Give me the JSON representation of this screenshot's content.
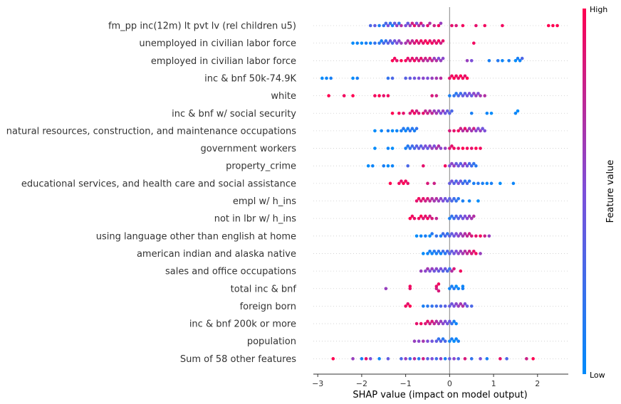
{
  "chart_data": {
    "type": "scatter",
    "subtype": "shap-beeswarm",
    "title": "",
    "xlabel": "SHAP value (impact on model output)",
    "ylabel": "",
    "xlim": [
      -3.1,
      2.7
    ],
    "xticks": [
      -3,
      -2,
      -1,
      0,
      1,
      2
    ],
    "colorbar": {
      "title": "Feature value",
      "high_label": "High",
      "low_label": "Low",
      "low_color": "#008bfb",
      "high_color": "#ff0051"
    },
    "grid": false,
    "features": [
      {
        "name": "fm_pp inc(12m) lt pvt lv (rel children u5)",
        "x": [
          -1.8,
          -1.7,
          -1.6,
          -1.5,
          -1.45,
          -1.4,
          -1.35,
          -1.3,
          -1.25,
          -1.2,
          -1.15,
          -1.1,
          -1.0,
          -0.95,
          -0.9,
          -0.85,
          -0.8,
          -0.75,
          -0.7,
          -0.65,
          -0.6,
          -0.5,
          -0.45,
          -0.35,
          -0.25,
          -0.2,
          0.05,
          0.15,
          0.3,
          0.6,
          0.8,
          1.2,
          2.25,
          2.35,
          2.45
        ],
        "c": [
          0.3,
          0.4,
          0.1,
          0.2,
          0.3,
          0.5,
          0.2,
          0.1,
          0.4,
          0.6,
          0.2,
          0.7,
          0.5,
          0.4,
          0.6,
          0.8,
          0.9,
          0.5,
          0.7,
          0.85,
          0.6,
          0.9,
          0.7,
          0.8,
          0.95,
          0.6,
          0.9,
          0.85,
          0.95,
          0.9,
          0.95,
          0.95,
          1.0,
          1.0,
          1.0
        ]
      },
      {
        "name": "unemployed  in civilian labor force",
        "x": [
          -2.2,
          -2.1,
          -2.0,
          -1.9,
          -1.8,
          -1.7,
          -1.6,
          -1.55,
          -1.5,
          -1.45,
          -1.4,
          -1.35,
          -1.3,
          -1.25,
          -1.2,
          -1.15,
          -1.1,
          -1.0,
          -0.95,
          -0.9,
          -0.85,
          -0.8,
          -0.75,
          -0.7,
          -0.65,
          -0.6,
          -0.55,
          -0.5,
          -0.45,
          -0.4,
          -0.35,
          -0.3,
          -0.25,
          -0.2,
          -0.15,
          0.55
        ],
        "c": [
          0.0,
          0.05,
          0.0,
          0.1,
          0.05,
          0.2,
          0.15,
          0.1,
          0.3,
          0.2,
          0.35,
          0.4,
          0.3,
          0.45,
          0.5,
          0.55,
          0.6,
          0.65,
          0.7,
          0.8,
          0.75,
          0.85,
          0.9,
          0.85,
          0.95,
          0.9,
          0.95,
          1.0,
          0.9,
          0.95,
          0.85,
          0.9,
          0.95,
          0.8,
          0.9,
          0.95
        ]
      },
      {
        "name": "employed in civilian labor force",
        "x": [
          -1.3,
          -1.25,
          -1.2,
          -1.1,
          -1.0,
          -0.95,
          -0.9,
          -0.85,
          -0.8,
          -0.75,
          -0.7,
          -0.65,
          -0.6,
          -0.55,
          -0.5,
          -0.45,
          -0.4,
          -0.35,
          -0.3,
          -0.25,
          -0.2,
          -0.15,
          0.4,
          0.5,
          0.9,
          1.1,
          1.2,
          1.35,
          1.5,
          1.55,
          1.6,
          1.65
        ],
        "c": [
          1.0,
          0.95,
          0.9,
          1.0,
          0.95,
          0.9,
          0.85,
          0.9,
          0.95,
          0.8,
          0.85,
          0.9,
          0.75,
          0.8,
          0.7,
          0.85,
          0.75,
          0.6,
          0.7,
          0.5,
          0.6,
          0.55,
          0.6,
          0.5,
          0.1,
          0.15,
          0.05,
          0.1,
          0.0,
          0.1,
          0.05,
          0.3
        ]
      },
      {
        "name": "inc & bnf 50k-74.9K",
        "x": [
          -2.9,
          -2.8,
          -2.7,
          -2.2,
          -2.1,
          -1.4,
          -1.3,
          -1.0,
          -0.9,
          -0.8,
          -0.7,
          -0.6,
          -0.5,
          -0.4,
          -0.3,
          -0.2,
          0.0,
          0.05,
          0.1,
          0.15,
          0.2,
          0.25,
          0.3,
          0.35,
          0.4
        ],
        "c": [
          0.0,
          0.05,
          0.1,
          0.0,
          0.1,
          0.2,
          0.3,
          0.35,
          0.4,
          0.45,
          0.5,
          0.55,
          0.5,
          0.6,
          0.65,
          0.7,
          0.9,
          0.95,
          1.0,
          0.95,
          0.9,
          1.0,
          0.95,
          0.9,
          1.0
        ]
      },
      {
        "name": "white",
        "x": [
          -2.75,
          -2.4,
          -2.2,
          -1.7,
          -1.6,
          -1.5,
          -1.4,
          -0.4,
          -0.3,
          0.0,
          0.1,
          0.15,
          0.2,
          0.25,
          0.3,
          0.35,
          0.4,
          0.45,
          0.5,
          0.55,
          0.6,
          0.65,
          0.7,
          0.8
        ],
        "c": [
          1.0,
          0.95,
          1.0,
          0.95,
          1.0,
          0.9,
          0.95,
          0.85,
          0.8,
          0.1,
          0.2,
          0.15,
          0.3,
          0.25,
          0.4,
          0.35,
          0.45,
          0.5,
          0.4,
          0.55,
          0.6,
          0.5,
          0.65,
          0.7
        ]
      },
      {
        "name": "inc & bnf w/ social security",
        "x": [
          -1.3,
          -1.15,
          -1.05,
          -0.9,
          -0.85,
          -0.8,
          -0.75,
          -0.7,
          -0.6,
          -0.55,
          -0.5,
          -0.45,
          -0.4,
          -0.35,
          -0.3,
          -0.25,
          -0.2,
          -0.15,
          -0.1,
          -0.05,
          0.0,
          0.05,
          0.5,
          0.85,
          0.95,
          1.5,
          1.55
        ],
        "c": [
          1.0,
          0.95,
          0.9,
          0.85,
          0.9,
          0.95,
          0.8,
          0.85,
          0.9,
          0.75,
          0.8,
          0.7,
          0.75,
          0.6,
          0.65,
          0.55,
          0.5,
          0.6,
          0.45,
          0.4,
          0.35,
          0.3,
          0.1,
          0.05,
          0.0,
          0.05,
          0.0
        ]
      },
      {
        "name": "natural resources, construction, and maintenance occupations",
        "x": [
          -1.7,
          -1.55,
          -1.4,
          -1.3,
          -1.2,
          -1.1,
          -1.05,
          -1.0,
          -0.95,
          -0.9,
          -0.85,
          -0.8,
          -0.75,
          0.0,
          0.1,
          0.2,
          0.25,
          0.3,
          0.35,
          0.4,
          0.45,
          0.5,
          0.55,
          0.6,
          0.65,
          0.7,
          0.75,
          0.8
        ],
        "c": [
          0.0,
          0.05,
          0.1,
          0.0,
          0.05,
          0.1,
          0.15,
          0.05,
          0.1,
          0.2,
          0.15,
          0.1,
          0.2,
          0.85,
          0.9,
          0.95,
          0.8,
          0.7,
          0.9,
          0.75,
          0.6,
          0.65,
          0.8,
          0.55,
          0.5,
          0.6,
          0.45,
          0.5
        ]
      },
      {
        "name": "government workers",
        "x": [
          -1.7,
          -1.4,
          -1.3,
          -1.0,
          -0.95,
          -0.9,
          -0.85,
          -0.8,
          -0.75,
          -0.7,
          -0.65,
          -0.6,
          -0.55,
          -0.5,
          -0.45,
          -0.4,
          -0.35,
          -0.3,
          -0.25,
          -0.2,
          -0.1,
          0.0,
          0.05,
          0.1,
          0.2,
          0.3,
          0.4,
          0.5,
          0.6,
          0.7
        ],
        "c": [
          0.0,
          0.05,
          0.0,
          0.1,
          0.15,
          0.2,
          0.25,
          0.3,
          0.35,
          0.4,
          0.35,
          0.45,
          0.5,
          0.4,
          0.55,
          0.6,
          0.5,
          0.65,
          0.7,
          0.55,
          0.6,
          0.85,
          0.9,
          0.95,
          0.9,
          1.0,
          0.95,
          0.9,
          1.0,
          0.95
        ]
      },
      {
        "name": "property_crime",
        "x": [
          -1.85,
          -1.75,
          -1.5,
          -1.4,
          -1.3,
          -0.95,
          -0.6,
          -0.1,
          0.0,
          0.05,
          0.1,
          0.15,
          0.2,
          0.25,
          0.3,
          0.35,
          0.4,
          0.45,
          0.5,
          0.55,
          0.6
        ],
        "c": [
          0.0,
          0.05,
          0.1,
          0.0,
          0.05,
          0.3,
          0.9,
          0.95,
          0.5,
          0.55,
          0.6,
          0.4,
          0.45,
          0.35,
          0.5,
          0.6,
          0.45,
          0.3,
          0.25,
          0.2,
          0.15
        ]
      },
      {
        "name": "educational services, and health care and social assistance",
        "x": [
          -1.35,
          -1.15,
          -1.1,
          -1.05,
          -1.0,
          -0.95,
          -0.5,
          -0.35,
          0.0,
          0.05,
          0.1,
          0.15,
          0.2,
          0.25,
          0.3,
          0.35,
          0.4,
          0.45,
          0.55,
          0.65,
          0.75,
          0.85,
          0.95,
          1.15,
          1.45
        ],
        "c": [
          1.0,
          0.95,
          0.9,
          1.0,
          0.95,
          0.9,
          0.85,
          0.8,
          0.4,
          0.45,
          0.35,
          0.3,
          0.5,
          0.4,
          0.25,
          0.2,
          0.3,
          0.15,
          0.1,
          0.15,
          0.1,
          0.05,
          0.1,
          0.0,
          0.05
        ]
      },
      {
        "name": "empl w/ h_ins",
        "x": [
          -0.75,
          -0.7,
          -0.65,
          -0.6,
          -0.55,
          -0.5,
          -0.45,
          -0.4,
          -0.35,
          -0.3,
          -0.25,
          -0.2,
          -0.15,
          -0.1,
          -0.05,
          0.0,
          0.05,
          0.1,
          0.15,
          0.2,
          0.3,
          0.45,
          0.65
        ],
        "c": [
          0.9,
          0.95,
          0.85,
          0.9,
          0.8,
          0.85,
          0.75,
          0.7,
          0.65,
          0.7,
          0.6,
          0.55,
          0.5,
          0.45,
          0.4,
          0.35,
          0.3,
          0.25,
          0.2,
          0.15,
          0.1,
          0.05,
          0.0
        ]
      },
      {
        "name": "not in lbr w/ h_ins",
        "x": [
          -0.9,
          -0.85,
          -0.8,
          -0.7,
          -0.65,
          -0.6,
          -0.55,
          -0.5,
          -0.45,
          -0.4,
          -0.3,
          0.0,
          0.05,
          0.1,
          0.15,
          0.2,
          0.25,
          0.3,
          0.35,
          0.4,
          0.45,
          0.5,
          0.55
        ],
        "c": [
          1.0,
          0.95,
          0.9,
          0.95,
          1.0,
          0.85,
          0.9,
          0.95,
          0.8,
          0.85,
          0.75,
          0.1,
          0.2,
          0.25,
          0.3,
          0.35,
          0.4,
          0.45,
          0.5,
          0.55,
          0.6,
          0.65,
          0.7
        ]
      },
      {
        "name": "using language other than english at home",
        "x": [
          -0.75,
          -0.65,
          -0.55,
          -0.45,
          -0.4,
          -0.3,
          -0.2,
          -0.15,
          -0.1,
          -0.05,
          0.0,
          0.05,
          0.1,
          0.15,
          0.2,
          0.25,
          0.3,
          0.35,
          0.4,
          0.45,
          0.5,
          0.6,
          0.7,
          0.8,
          0.9
        ],
        "c": [
          0.0,
          0.05,
          0.1,
          0.0,
          0.15,
          0.2,
          0.1,
          0.25,
          0.3,
          0.2,
          0.35,
          0.4,
          0.45,
          0.5,
          0.55,
          0.6,
          0.65,
          0.7,
          0.75,
          0.8,
          0.85,
          0.9,
          0.95,
          0.8,
          0.6
        ]
      },
      {
        "name": "american indian and alaska native",
        "x": [
          -0.6,
          -0.5,
          -0.45,
          -0.4,
          -0.35,
          -0.3,
          -0.25,
          -0.2,
          -0.15,
          -0.1,
          -0.05,
          0.0,
          0.05,
          0.1,
          0.15,
          0.2,
          0.25,
          0.3,
          0.35,
          0.4,
          0.45,
          0.5,
          0.55,
          0.6,
          0.7
        ],
        "c": [
          0.0,
          0.05,
          0.1,
          0.05,
          0.15,
          0.1,
          0.2,
          0.05,
          0.25,
          0.15,
          0.3,
          0.35,
          0.4,
          0.45,
          0.5,
          0.55,
          0.6,
          0.65,
          0.7,
          0.75,
          0.8,
          0.85,
          0.9,
          0.95,
          0.6
        ]
      },
      {
        "name": "sales and office occupations",
        "x": [
          -0.65,
          -0.55,
          -0.5,
          -0.45,
          -0.4,
          -0.35,
          -0.3,
          -0.25,
          -0.2,
          -0.15,
          -0.1,
          -0.05,
          0.0,
          0.05,
          0.1,
          0.25
        ],
        "c": [
          0.6,
          0.55,
          0.65,
          0.5,
          0.6,
          0.45,
          0.55,
          0.4,
          0.5,
          0.35,
          0.45,
          0.3,
          0.2,
          0.7,
          0.85,
          0.95
        ]
      },
      {
        "name": "total inc & bnf",
        "x": [
          -1.45,
          -0.9,
          -0.9,
          -0.3,
          -0.3,
          -0.25,
          -0.25,
          0.0,
          0.05,
          0.1,
          0.15,
          0.2,
          0.3,
          0.3
        ],
        "c": [
          0.6,
          0.9,
          0.95,
          0.8,
          0.9,
          0.85,
          0.95,
          0.05,
          0.1,
          0.15,
          0.0,
          0.05,
          0.1,
          0.05
        ]
      },
      {
        "name": "foreign born",
        "x": [
          -1.0,
          -0.95,
          -0.9,
          -0.6,
          -0.5,
          -0.4,
          -0.3,
          -0.2,
          -0.1,
          0.0,
          0.05,
          0.1,
          0.15,
          0.2,
          0.25,
          0.3,
          0.35,
          0.4,
          0.5
        ],
        "c": [
          0.95,
          0.9,
          1.0,
          0.1,
          0.15,
          0.2,
          0.25,
          0.3,
          0.35,
          0.4,
          0.45,
          0.5,
          0.55,
          0.6,
          0.65,
          0.7,
          0.5,
          0.4,
          0.3
        ]
      },
      {
        "name": "inc & bnf 200k or more",
        "x": [
          -0.75,
          -0.65,
          -0.55,
          -0.5,
          -0.45,
          -0.4,
          -0.35,
          -0.3,
          -0.25,
          -0.2,
          -0.15,
          -0.1,
          -0.05,
          0.0,
          0.05,
          0.1,
          0.15
        ],
        "c": [
          0.9,
          0.95,
          0.85,
          0.9,
          0.8,
          0.85,
          0.75,
          0.7,
          0.65,
          0.6,
          0.55,
          0.5,
          0.45,
          0.4,
          0.2,
          0.1,
          0.05
        ]
      },
      {
        "name": "population",
        "x": [
          -0.8,
          -0.7,
          -0.6,
          -0.5,
          -0.4,
          -0.3,
          -0.2,
          -0.1,
          0.0,
          0.05,
          0.1,
          0.15,
          0.2,
          -0.15,
          -0.25
        ],
        "c": [
          0.6,
          0.55,
          0.65,
          0.5,
          0.45,
          0.4,
          0.35,
          0.3,
          0.05,
          0.1,
          0.0,
          0.05,
          0.1,
          0.15,
          0.2
        ]
      },
      {
        "name": "Sum of 58 other features",
        "x": [
          -2.65,
          -2.2,
          -2.0,
          -1.9,
          -1.8,
          -1.6,
          -1.4,
          -1.1,
          -1.0,
          -0.9,
          -0.8,
          -0.7,
          -0.6,
          -0.5,
          -0.4,
          -0.3,
          -0.2,
          -0.1,
          0.0,
          0.1,
          0.2,
          0.35,
          0.5,
          0.7,
          0.85,
          1.15,
          1.3,
          1.75,
          1.9
        ],
        "c": [
          1.0,
          0.6,
          0.1,
          0.9,
          0.5,
          0.05,
          0.4,
          0.3,
          0.6,
          0.2,
          0.7,
          0.15,
          0.8,
          0.35,
          0.5,
          0.25,
          0.6,
          0.1,
          0.4,
          0.55,
          0.3,
          0.85,
          0.2,
          0.5,
          0.1,
          0.9,
          0.3,
          0.8,
          1.0
        ]
      }
    ]
  }
}
